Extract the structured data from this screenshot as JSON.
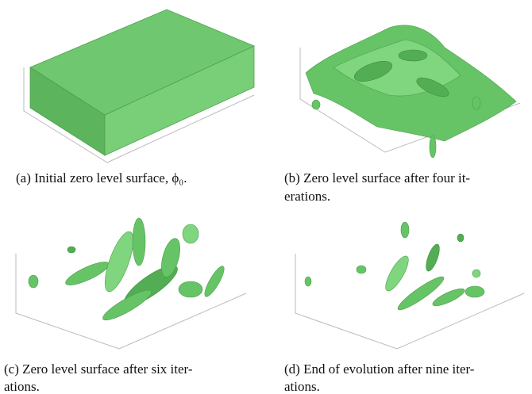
{
  "figure": {
    "panels": [
      {
        "label": "(a)",
        "caption": [
          "Initial zero level surface, ϕ₀."
        ]
      },
      {
        "label": "(b)",
        "caption": [
          "Zero level surface after four it-",
          "erations."
        ]
      },
      {
        "label": "(c)",
        "caption": [
          "Zero level surface after six iter-",
          "ations."
        ]
      },
      {
        "label": "(d)",
        "caption": [
          "End of evolution after nine iter-",
          "ations."
        ]
      }
    ]
  }
}
